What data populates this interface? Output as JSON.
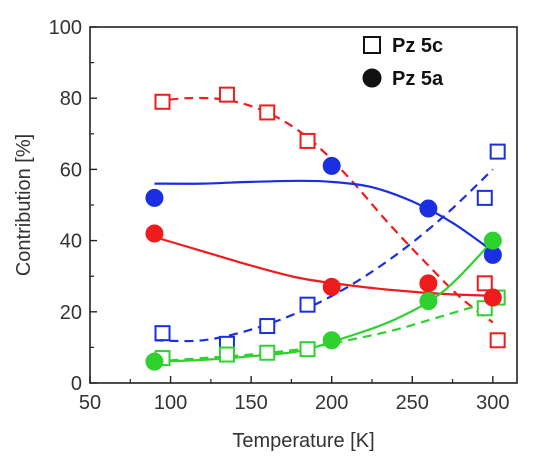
{
  "chart_data": {
    "type": "scatter",
    "title": "",
    "xlabel": "Temperature [K]",
    "ylabel": "Contribution [%]",
    "xlim": [
      50,
      315
    ],
    "ylim": [
      0,
      100
    ],
    "x_ticks": [
      50,
      100,
      150,
      200,
      250,
      300
    ],
    "y_ticks": [
      0,
      20,
      40,
      60,
      80,
      100
    ],
    "grid": false,
    "legend_position": "top-right",
    "legend": [
      {
        "label": "Pz 5c",
        "marker": "open-square"
      },
      {
        "label": "Pz 5a",
        "marker": "filled-circle"
      }
    ],
    "series": [
      {
        "color": "#ee1c1c",
        "marker": "open-square",
        "line": "dashed",
        "points": [
          [
            95,
            79
          ],
          [
            135,
            81
          ],
          [
            160,
            76
          ],
          [
            185,
            68
          ],
          [
            295,
            28
          ],
          [
            303,
            12
          ]
        ],
        "curve": [
          [
            90,
            79
          ],
          [
            110,
            80
          ],
          [
            135,
            79.5
          ],
          [
            160,
            76
          ],
          [
            185,
            69
          ],
          [
            210,
            58
          ],
          [
            235,
            45
          ],
          [
            260,
            33
          ],
          [
            280,
            24
          ],
          [
            300,
            17
          ]
        ]
      },
      {
        "color": "#1a2fe0",
        "marker": "open-square",
        "line": "dashed",
        "points": [
          [
            95,
            14
          ],
          [
            135,
            11
          ],
          [
            160,
            16
          ],
          [
            185,
            22
          ],
          [
            295,
            52
          ],
          [
            303,
            65
          ]
        ],
        "curve": [
          [
            90,
            12
          ],
          [
            120,
            12
          ],
          [
            150,
            15
          ],
          [
            180,
            20
          ],
          [
            210,
            27
          ],
          [
            240,
            36
          ],
          [
            270,
            47
          ],
          [
            300,
            60
          ]
        ]
      },
      {
        "color": "#2ed12e",
        "marker": "open-square",
        "line": "dashed",
        "points": [
          [
            95,
            7
          ],
          [
            135,
            8
          ],
          [
            160,
            8.5
          ],
          [
            185,
            9.5
          ],
          [
            295,
            21
          ],
          [
            303,
            24
          ]
        ],
        "curve": [
          [
            90,
            6
          ],
          [
            120,
            7
          ],
          [
            150,
            8
          ],
          [
            180,
            9.5
          ],
          [
            210,
            12
          ],
          [
            240,
            15
          ],
          [
            270,
            19
          ],
          [
            300,
            23
          ]
        ]
      },
      {
        "color": "#1a2fe0",
        "marker": "filled-circle",
        "line": "solid",
        "points": [
          [
            90,
            52
          ],
          [
            200,
            61
          ],
          [
            260,
            49
          ],
          [
            300,
            36
          ]
        ],
        "curve": [
          [
            90,
            56
          ],
          [
            120,
            56
          ],
          [
            150,
            56.5
          ],
          [
            180,
            56.8
          ],
          [
            200,
            56.5
          ],
          [
            225,
            55
          ],
          [
            250,
            51
          ],
          [
            275,
            45
          ],
          [
            300,
            37
          ]
        ]
      },
      {
        "color": "#ee1c1c",
        "marker": "filled-circle",
        "line": "solid",
        "points": [
          [
            90,
            42
          ],
          [
            200,
            27
          ],
          [
            260,
            28
          ],
          [
            300,
            24
          ]
        ],
        "curve": [
          [
            90,
            41
          ],
          [
            120,
            37
          ],
          [
            150,
            33
          ],
          [
            180,
            29.5
          ],
          [
            210,
            27.5
          ],
          [
            240,
            26
          ],
          [
            270,
            25
          ],
          [
            300,
            24.5
          ]
        ]
      },
      {
        "color": "#2ed12e",
        "marker": "filled-circle",
        "line": "solid",
        "points": [
          [
            90,
            6
          ],
          [
            200,
            12
          ],
          [
            260,
            23
          ],
          [
            300,
            40
          ]
        ],
        "curve": [
          [
            90,
            6
          ],
          [
            120,
            6.5
          ],
          [
            150,
            7.5
          ],
          [
            180,
            9
          ],
          [
            210,
            13
          ],
          [
            240,
            18
          ],
          [
            270,
            26
          ],
          [
            300,
            40
          ]
        ]
      }
    ]
  }
}
